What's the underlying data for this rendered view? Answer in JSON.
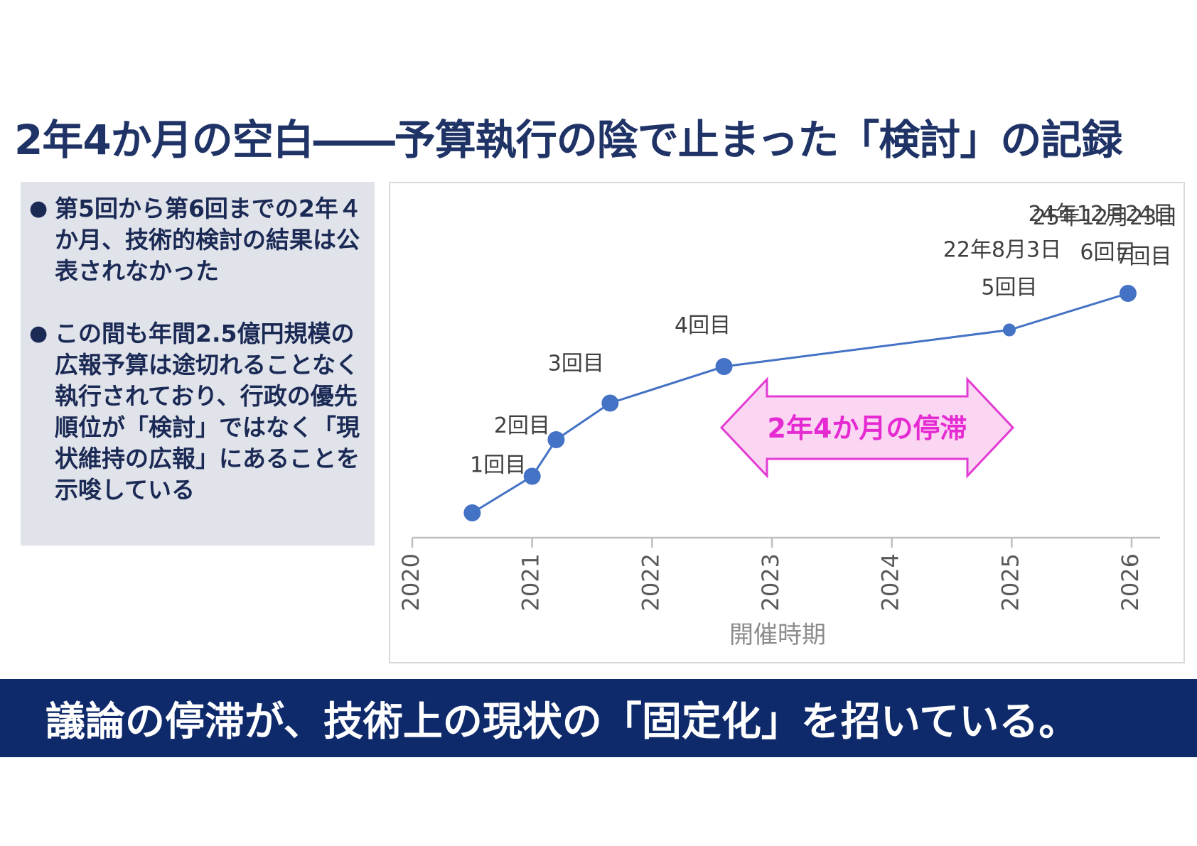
{
  "title": "2年4か月の空白――予算執行の陰で止まった「検討」の記録",
  "notes": [
    "第5回から第6回までの2年４か月、技術的検討の結果は公表されなかった",
    "この間も年間2.5億円規模の広報予算は途切れることなく執行されており、行政の優先順位が「検討」ではなく「現状維持の広報」にあることを示唆している"
  ],
  "bullet_glyph": "●",
  "footer": "議論の停滞が、技術上の現状の「固定化」を招いている。",
  "chart_data": {
    "type": "line",
    "xlabel": "開催時期",
    "ylabel": "",
    "xlim": [
      2020,
      2026
    ],
    "x_ticks": [
      2020,
      2021,
      2022,
      2023,
      2024,
      2025,
      2026
    ],
    "x_tick_labels": [
      "2020",
      "2021",
      "2022",
      "2023",
      "2024",
      "2025",
      "2026"
    ],
    "ylim": [
      0,
      8
    ],
    "grid": false,
    "series": [
      {
        "color": "#4472c4",
        "points": [
          {
            "x": 2020.5,
            "y": 1,
            "label": "",
            "date": ""
          },
          {
            "x": 2021.0,
            "y": 2,
            "label": "1回目",
            "date": ""
          },
          {
            "x": 2021.2,
            "y": 3,
            "label": "2回目",
            "date": ""
          },
          {
            "x": 2021.65,
            "y": 4,
            "label": "3回目",
            "date": ""
          },
          {
            "x": 2022.6,
            "y": 5,
            "label": "4回目",
            "date": ""
          },
          {
            "x": 2024.98,
            "y": 6,
            "label": "5回目",
            "date": "22年8月3日"
          },
          {
            "x": 2025.97,
            "y": 7,
            "label": "6回目",
            "date": "24年12月24日"
          }
        ]
      }
    ],
    "extra_label": {
      "label": "7回目",
      "date": "25年12月23日"
    },
    "annotation": {
      "text": "2年4か月の停滞",
      "fill": "#fbd6f3",
      "stroke": "#e23bd4",
      "text_color": "#e62ad2"
    }
  }
}
